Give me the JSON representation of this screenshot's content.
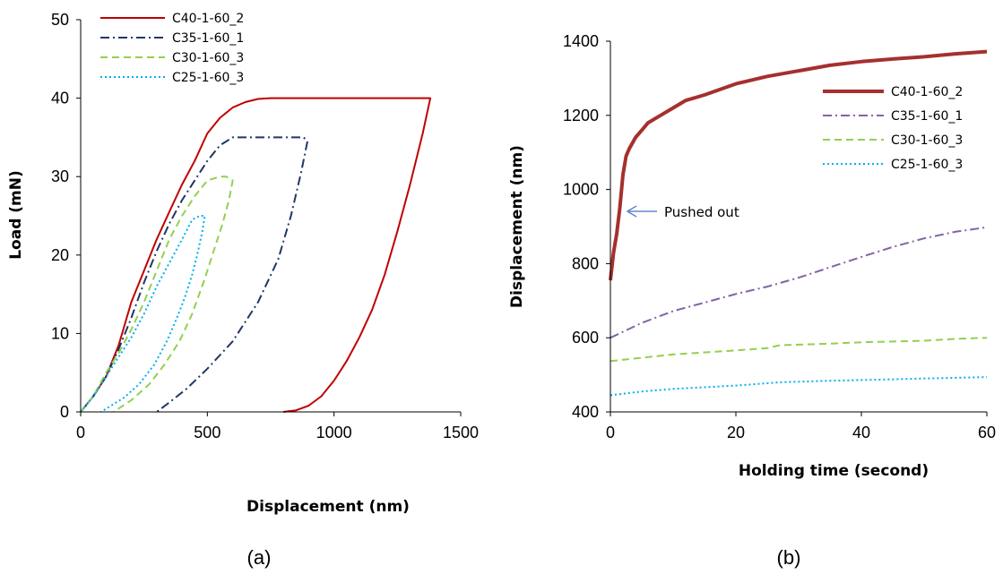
{
  "chart_data": [
    {
      "type": "line",
      "caption": "(a)",
      "xlabel": "Displacement (nm)",
      "ylabel": "Load (mN)",
      "xlim": [
        0,
        1500
      ],
      "ylim": [
        0,
        50
      ],
      "xticks": [
        "0",
        "500",
        "1000",
        "1500"
      ],
      "yticks": [
        "0",
        "10",
        "20",
        "30",
        "40",
        "50"
      ],
      "grid": false,
      "legend_position": "top-left",
      "series": [
        {
          "name": "C40-1-60_2",
          "color": "#C00000",
          "dash": "solid",
          "points": [
            [
              0,
              0
            ],
            [
              50,
              2
            ],
            [
              100,
              4.5
            ],
            [
              150,
              8.5
            ],
            [
              200,
              14
            ],
            [
              250,
              18
            ],
            [
              300,
              22
            ],
            [
              350,
              25.5
            ],
            [
              400,
              29
            ],
            [
              450,
              32
            ],
            [
              500,
              35.5
            ],
            [
              550,
              37.5
            ],
            [
              600,
              38.8
            ],
            [
              650,
              39.5
            ],
            [
              700,
              39.9
            ],
            [
              750,
              40
            ],
            [
              1380,
              40
            ],
            [
              1350,
              35.5
            ],
            [
              1300,
              29
            ],
            [
              1250,
              23
            ],
            [
              1200,
              17.5
            ],
            [
              1150,
              13
            ],
            [
              1100,
              9.5
            ],
            [
              1050,
              6.5
            ],
            [
              1000,
              4
            ],
            [
              950,
              2
            ],
            [
              900,
              0.8
            ],
            [
              850,
              0.2
            ],
            [
              800,
              0
            ]
          ]
        },
        {
          "name": "C35-1-60_1",
          "color": "#1F3864",
          "dash": "dashdot",
          "points": [
            [
              0,
              0
            ],
            [
              50,
              2
            ],
            [
              100,
              4.5
            ],
            [
              150,
              8
            ],
            [
              200,
              12
            ],
            [
              250,
              16.5
            ],
            [
              300,
              20.5
            ],
            [
              350,
              24
            ],
            [
              400,
              27
            ],
            [
              450,
              29.5
            ],
            [
              500,
              32
            ],
            [
              550,
              34
            ],
            [
              600,
              35
            ],
            [
              880,
              35
            ],
            [
              895,
              34.5
            ],
            [
              870,
              30.5
            ],
            [
              830,
              25
            ],
            [
              780,
              19.5
            ],
            [
              700,
              14
            ],
            [
              600,
              9
            ],
            [
              500,
              5.5
            ],
            [
              420,
              3
            ],
            [
              350,
              1.2
            ],
            [
              300,
              0
            ]
          ]
        },
        {
          "name": "C30-1-60_3",
          "color": "#92D050",
          "dash": "dashed",
          "points": [
            [
              0,
              0
            ],
            [
              50,
              2
            ],
            [
              100,
              5
            ],
            [
              150,
              7.5
            ],
            [
              200,
              10.5
            ],
            [
              250,
              14
            ],
            [
              300,
              18
            ],
            [
              350,
              22
            ],
            [
              400,
              25
            ],
            [
              450,
              27.5
            ],
            [
              500,
              29.5
            ],
            [
              550,
              30
            ],
            [
              575,
              30
            ],
            [
              600,
              29.5
            ],
            [
              585,
              27
            ],
            [
              560,
              24
            ],
            [
              530,
              21
            ],
            [
              490,
              17
            ],
            [
              440,
              12.5
            ],
            [
              390,
              9
            ],
            [
              330,
              6
            ],
            [
              270,
              3.5
            ],
            [
              200,
              1.5
            ],
            [
              130,
              0
            ]
          ]
        },
        {
          "name": "C25-1-60_3",
          "color": "#00B0F0",
          "dash": "dotted",
          "points": [
            [
              0,
              0
            ],
            [
              50,
              2
            ],
            [
              100,
              4.5
            ],
            [
              150,
              7
            ],
            [
              200,
              9.5
            ],
            [
              250,
              12.5
            ],
            [
              300,
              16
            ],
            [
              350,
              19
            ],
            [
              400,
              22
            ],
            [
              440,
              24.5
            ],
            [
              470,
              25
            ],
            [
              490,
              25
            ],
            [
              480,
              23
            ],
            [
              460,
              20
            ],
            [
              440,
              17.5
            ],
            [
              410,
              14.5
            ],
            [
              380,
              12
            ],
            [
              340,
              9
            ],
            [
              290,
              6
            ],
            [
              230,
              3.5
            ],
            [
              170,
              1.8
            ],
            [
              120,
              0.8
            ],
            [
              80,
              0
            ]
          ]
        }
      ]
    },
    {
      "type": "line",
      "caption": "(b)",
      "xlabel": "Holding time (second)",
      "ylabel": "Displacement (nm)",
      "xlim": [
        0,
        60
      ],
      "ylim": [
        400,
        1400
      ],
      "xticks": [
        "0",
        "20",
        "40",
        "60"
      ],
      "yticks": [
        "400",
        "600",
        "800",
        "1000",
        "1200",
        "1400"
      ],
      "grid": false,
      "legend_position": "right",
      "annotation": {
        "text": "Pushed out",
        "at": [
          2,
          945
        ]
      },
      "series": [
        {
          "name": "C40-1-60_2",
          "color": "#A5302E",
          "dash": "solid-thick",
          "points": [
            [
              0,
              755
            ],
            [
              0.5,
              830
            ],
            [
              1,
              880
            ],
            [
              1.5,
              950
            ],
            [
              2,
              1040
            ],
            [
              2.5,
              1090
            ],
            [
              3,
              1110
            ],
            [
              4,
              1140
            ],
            [
              5,
              1160
            ],
            [
              6,
              1180
            ],
            [
              8,
              1200
            ],
            [
              10,
              1220
            ],
            [
              12,
              1240
            ],
            [
              15,
              1255
            ],
            [
              20,
              1285
            ],
            [
              25,
              1305
            ],
            [
              30,
              1320
            ],
            [
              35,
              1335
            ],
            [
              40,
              1345
            ],
            [
              45,
              1352
            ],
            [
              50,
              1358
            ],
            [
              55,
              1366
            ],
            [
              60,
              1372
            ]
          ]
        },
        {
          "name": "C35-1-60_1",
          "color": "#8064A2",
          "dash": "dashdot",
          "points": [
            [
              0,
              600
            ],
            [
              5,
              640
            ],
            [
              10,
              672
            ],
            [
              15,
              695
            ],
            [
              20,
              718
            ],
            [
              25,
              738
            ],
            [
              30,
              762
            ],
            [
              35,
              790
            ],
            [
              40,
              818
            ],
            [
              45,
              845
            ],
            [
              50,
              868
            ],
            [
              55,
              886
            ],
            [
              60,
              898
            ]
          ]
        },
        {
          "name": "C30-1-60_3",
          "color": "#92D050",
          "dash": "dashed",
          "points": [
            [
              0,
              537
            ],
            [
              10,
              555
            ],
            [
              20,
              566
            ],
            [
              25,
              572
            ],
            [
              27,
              580
            ],
            [
              35,
              584
            ],
            [
              40,
              588
            ],
            [
              50,
              592
            ],
            [
              55,
              597
            ],
            [
              60,
              600
            ]
          ]
        },
        {
          "name": "C25-1-60_3",
          "color": "#00B0F0",
          "dash": "dotted",
          "points": [
            [
              0,
              445
            ],
            [
              5,
              455
            ],
            [
              10,
              462
            ],
            [
              20,
              471
            ],
            [
              27,
              480
            ],
            [
              35,
              484
            ],
            [
              40,
              486
            ],
            [
              45,
              488
            ],
            [
              50,
              490
            ],
            [
              55,
              492
            ],
            [
              60,
              494
            ]
          ]
        }
      ]
    }
  ]
}
